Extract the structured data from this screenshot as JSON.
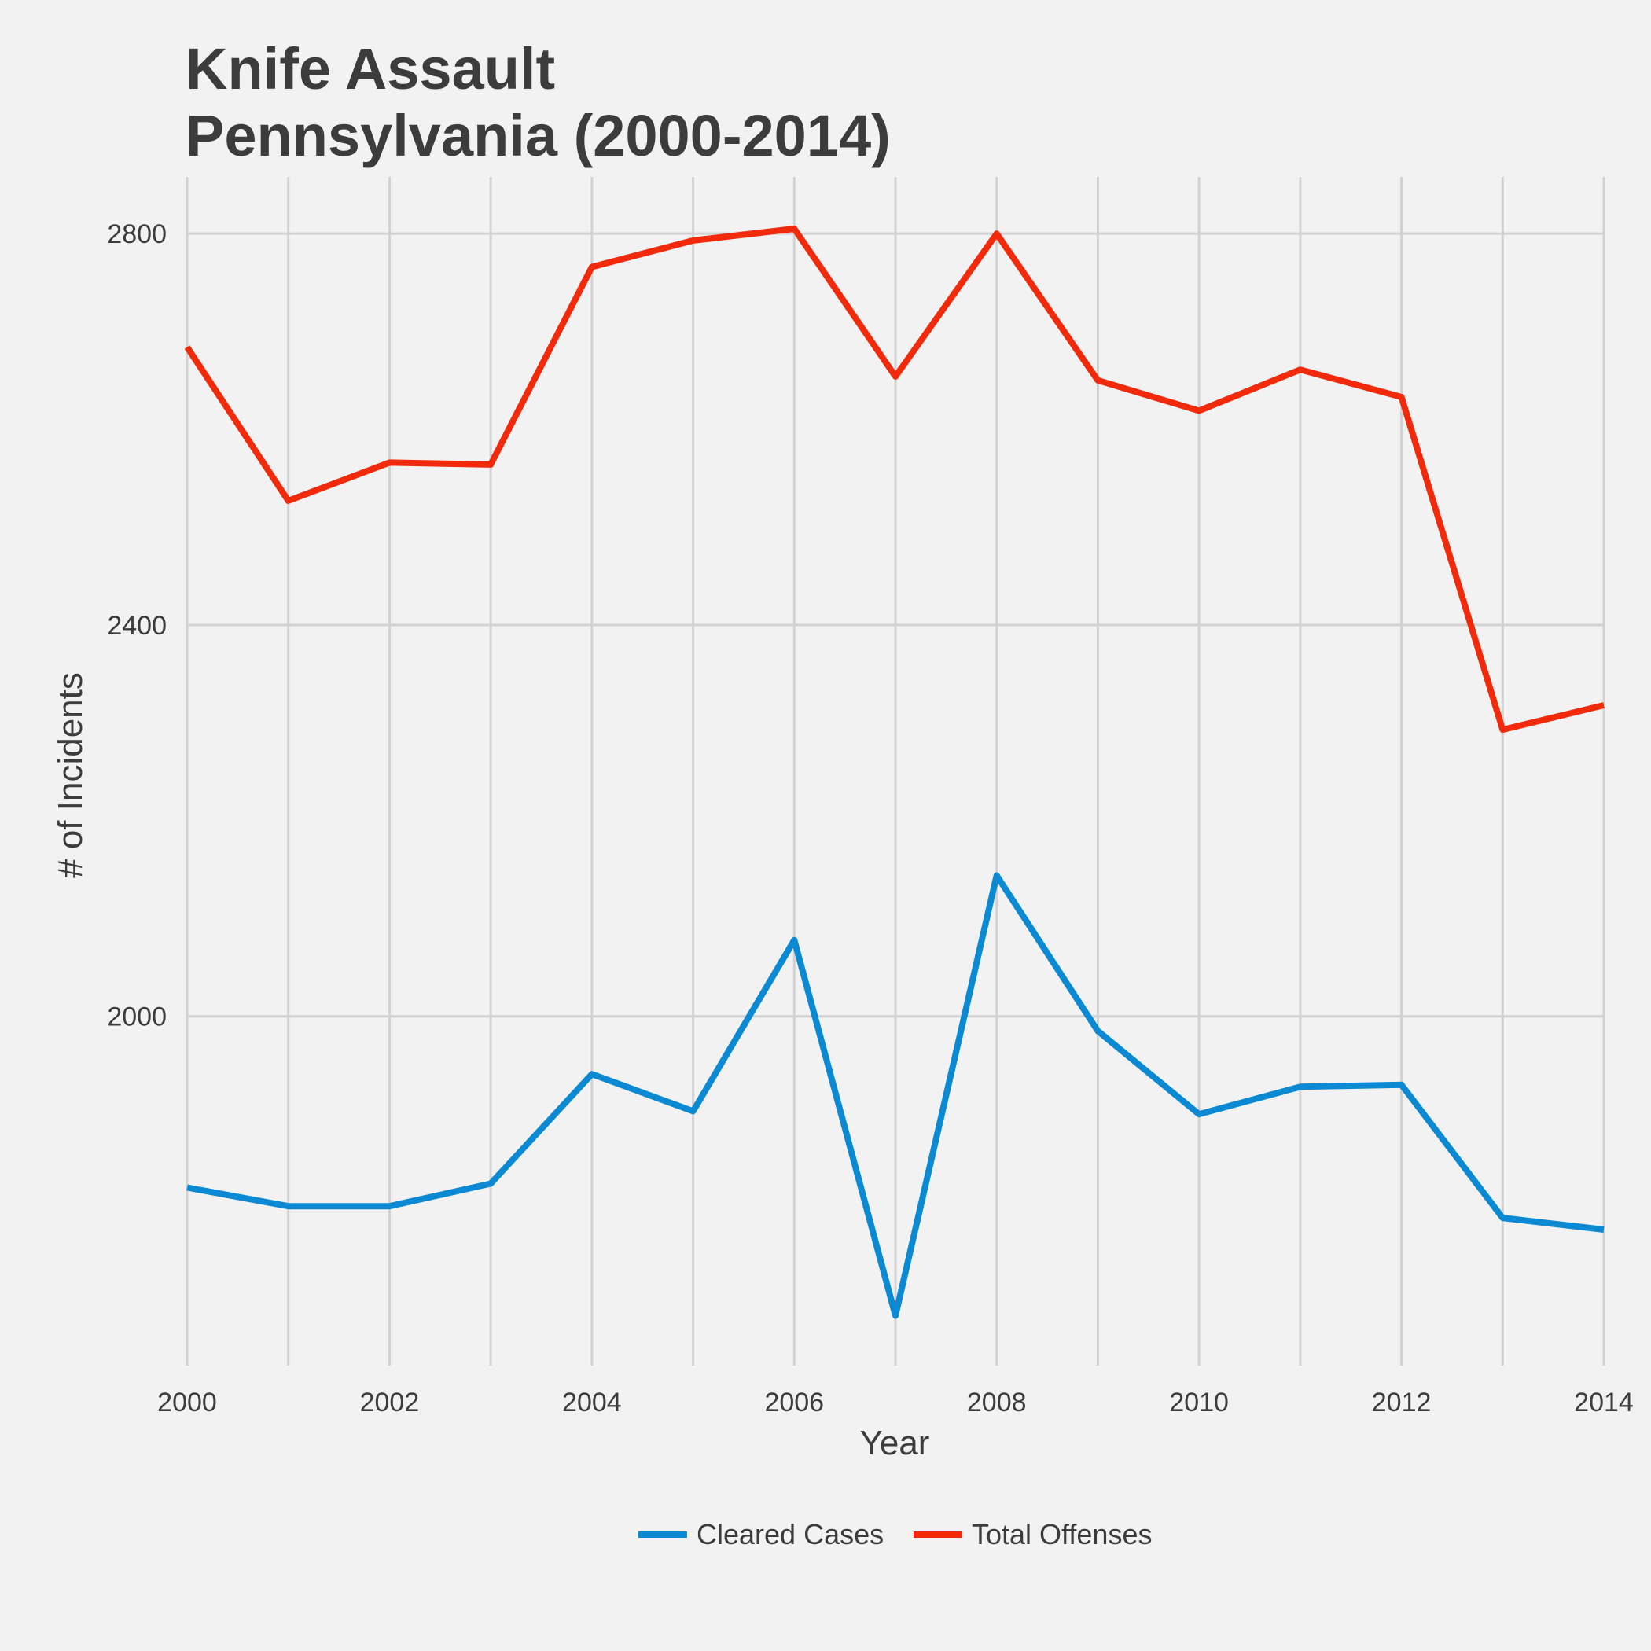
{
  "chart_data": {
    "type": "line",
    "title": [
      "Knife Assault",
      "Pennsylvania (2000-2014)"
    ],
    "xlabel": "Year",
    "ylabel": "# of Incidents",
    "x": [
      2000,
      2001,
      2002,
      2003,
      2004,
      2005,
      2006,
      2007,
      2008,
      2009,
      2010,
      2011,
      2012,
      2013,
      2014
    ],
    "xticks": [
      "2000",
      "2002",
      "2004",
      "2006",
      "2008",
      "2010",
      "2012",
      "2014"
    ],
    "yticks": [
      "2000",
      "2400",
      "2800"
    ],
    "xlim": [
      2000,
      2014
    ],
    "ylim": [
      1643,
      2858
    ],
    "grid": true,
    "legend_position": "bottom",
    "series": [
      {
        "name": "Cleared Cases",
        "color": "#0b8ad3",
        "values": [
          1825,
          1806,
          1806,
          1829,
          1941,
          1903,
          2078,
          1694,
          2144,
          1985,
          1900,
          1928,
          1930,
          1794,
          1782
        ]
      },
      {
        "name": "Total Offenses",
        "color": "#f22a0c",
        "values": [
          2684,
          2527,
          2566,
          2564,
          2766,
          2793,
          2805,
          2654,
          2800,
          2650,
          2619,
          2661,
          2633,
          2293,
          2318
        ]
      }
    ]
  }
}
